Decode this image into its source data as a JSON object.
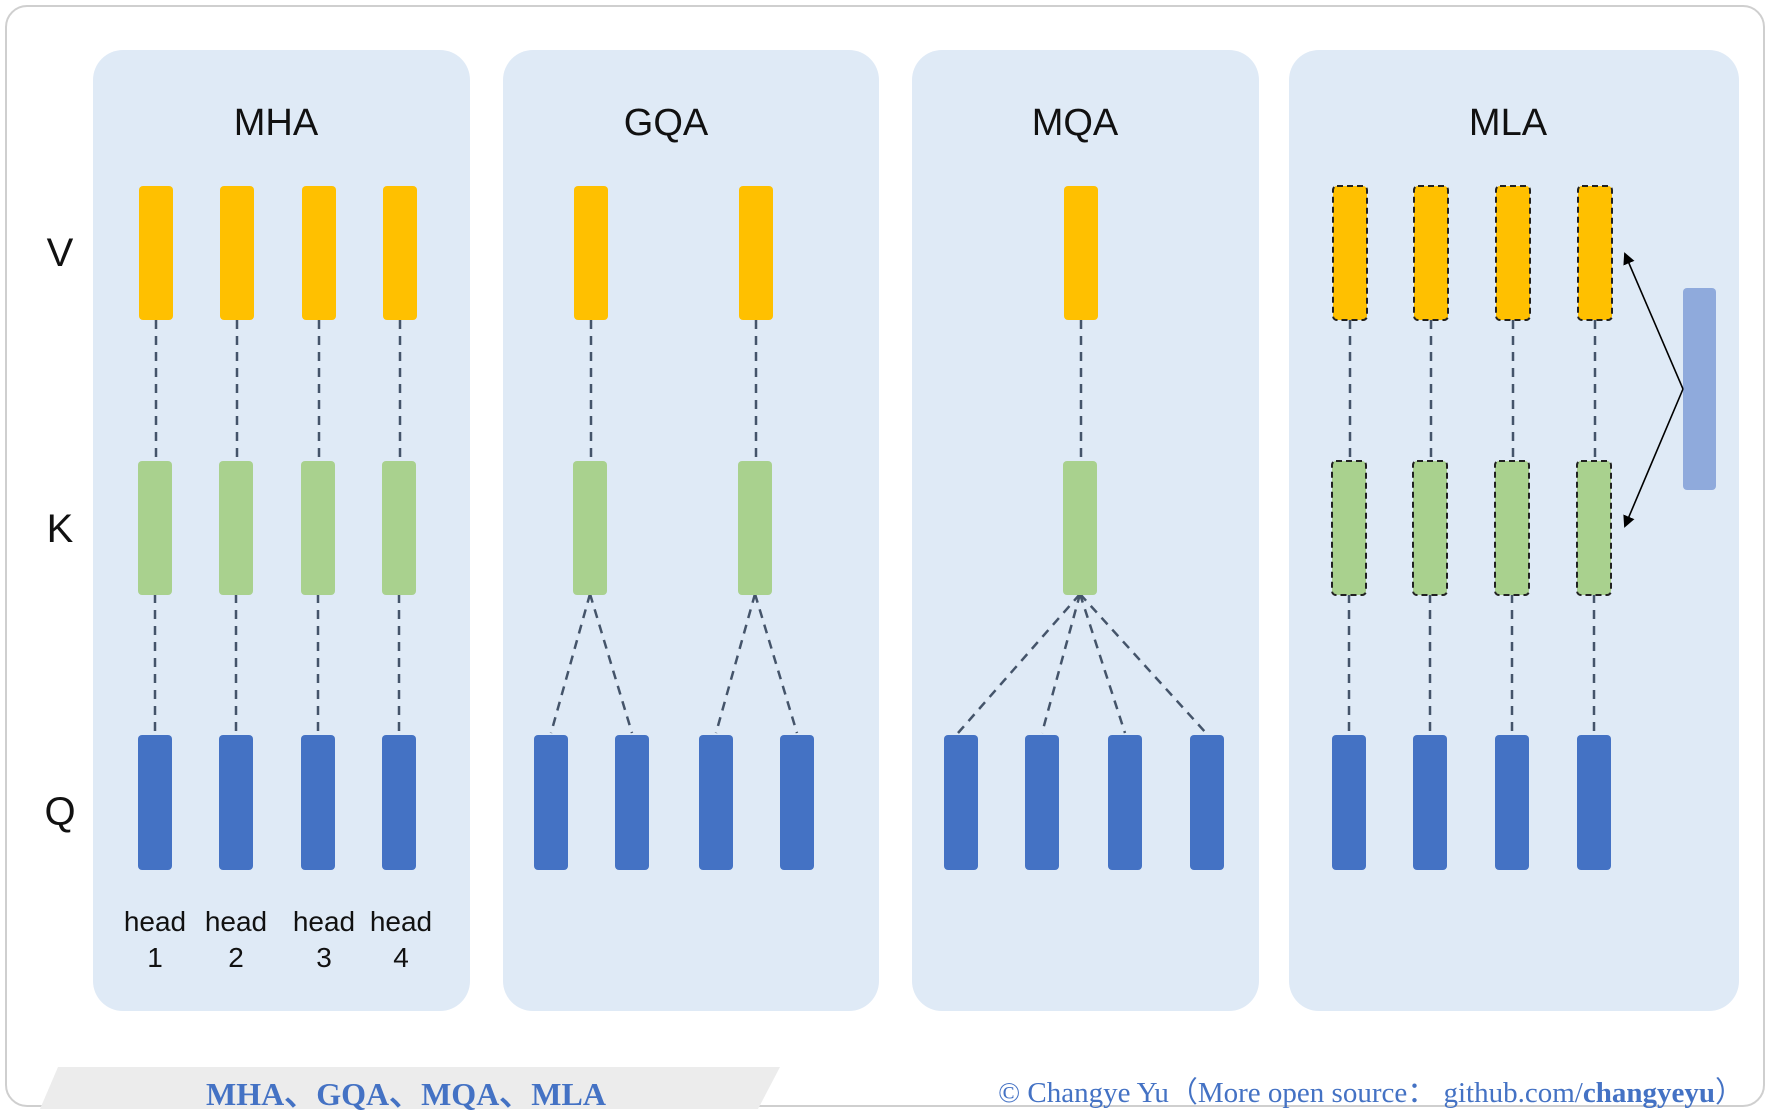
{
  "panels": [
    {
      "title": "MHA",
      "queries": 4,
      "kv_groups": 4,
      "latent": false
    },
    {
      "title": "GQA",
      "queries": 4,
      "kv_groups": 2,
      "latent": false
    },
    {
      "title": "MQA",
      "queries": 4,
      "kv_groups": 1,
      "latent": false
    },
    {
      "title": "MLA",
      "queries": 4,
      "kv_groups": 4,
      "latent": true
    }
  ],
  "rows": {
    "v": "V",
    "k": "K",
    "q": "Q"
  },
  "head_labels": [
    {
      "word": "head",
      "num": "1"
    },
    {
      "word": "head",
      "num": "2"
    },
    {
      "word": "head",
      "num": "3"
    },
    {
      "word": "head",
      "num": "4"
    }
  ],
  "colors": {
    "panel": "#dfeaf6",
    "value": "#ffc000",
    "key": "#a9d18e",
    "query": "#4472c4",
    "latent": "#8faadc",
    "link": "#44546a"
  },
  "footer": {
    "title": "MHA、GQA、MQA、MLA",
    "credit_prefix": "© Changye Yu（More open source：  github.com/",
    "credit_handle": "changyeyu",
    "credit_suffix": "）"
  }
}
